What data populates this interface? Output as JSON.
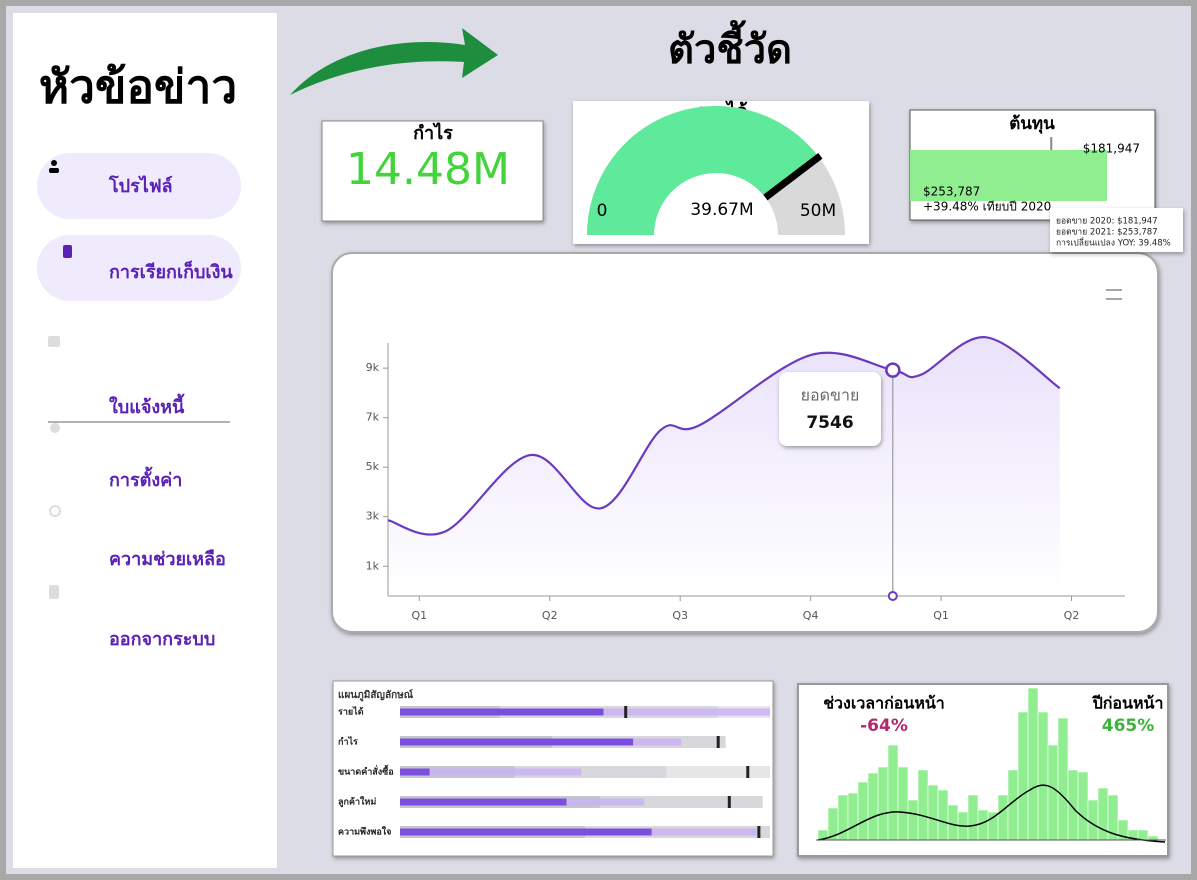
{
  "sidebar": {
    "title": "หัวข้อข่าว",
    "items": [
      "โปรไฟล์",
      "การเรียกเก็บเงิน",
      "ใบแจ้งหนี้",
      "การตั้งค่า",
      "ความช่วยเหลือ",
      "ออกจากระบบ"
    ]
  },
  "header": {
    "title": "ตัวชี้วัด"
  },
  "profit_card": {
    "title": "กำไร",
    "value": "14.48M"
  },
  "revenue_gauge": {
    "title": "รายได้",
    "value": 39.67,
    "value_label": "39.67M",
    "ticks": [
      0,
      {
        "value": 50,
        "label": "50M"
      }
    ]
  },
  "cost_card": {
    "title": "ต้นทุน",
    "current": 253787,
    "current_label": "$253,787",
    "target": 181947,
    "target_label": "$181,947",
    "change_label": "+39.48% เทียบปี 2020",
    "tooltip": [
      "ยอดขาย 2020: $181,947",
      "ยอดขาย 2021: $253,787",
      "การเปลี่ยนแปลง YOY: 39.48%"
    ]
  },
  "sales_chart": {
    "type": "line",
    "x": [
      -0.24,
      0.2,
      0.85,
      1.39,
      1.85,
      2.15,
      3.0,
      3.63,
      3.84,
      4.34,
      4.91
    ],
    "y": [
      2860,
      2410,
      5490,
      3340,
      6500,
      6700,
      9530,
      8920,
      8720,
      10250,
      8190
    ],
    "xlim": [
      -0.24,
      5.41
    ],
    "ylim": [
      -200,
      10500
    ],
    "xticks": [
      {
        "value": 0,
        "label": "Q1"
      },
      {
        "value": 1,
        "label": "Q2"
      },
      {
        "value": 2,
        "label": "Q3"
      },
      {
        "value": 3,
        "label": "Q4"
      },
      {
        "value": 4,
        "label": "Q1"
      },
      {
        "value": 5,
        "label": "Q2"
      }
    ],
    "yticks": [
      {
        "value": 1000,
        "label": "1k"
      },
      {
        "value": 3000,
        "label": "3k"
      },
      {
        "value": 5000,
        "label": "5k"
      },
      {
        "value": 7000,
        "label": "7k"
      },
      {
        "value": 9000,
        "label": "9k"
      }
    ],
    "color": "#6a3bbf",
    "tooltip": {
      "label": "ยอดขาย",
      "value": "7546"
    }
  },
  "bullet_chart": {
    "title": "แผนภูมิสัญลักษณ์",
    "xlim": [
      0,
      100
    ],
    "rows": [
      {
        "label": "รายได้",
        "value": 55,
        "projected": 100,
        "target": 61,
        "ranges": [
          27,
          86,
          100
        ]
      },
      {
        "label": "กำไร",
        "value": 63,
        "projected": 76,
        "target": 86,
        "ranges": [
          41,
          88,
          88
        ]
      },
      {
        "label": "ขนาดคำสั่งซื้อ",
        "value": 8,
        "projected": 49,
        "target": 94,
        "ranges": [
          31,
          72,
          100
        ]
      },
      {
        "label": "ลูกค้าใหม่",
        "value": 45,
        "projected": 66,
        "target": 89,
        "ranges": [
          54,
          98,
          98
        ]
      },
      {
        "label": "ความพึงพอใจ",
        "value": 68,
        "projected": 97,
        "target": 97,
        "ranges": [
          50,
          100,
          100
        ]
      }
    ]
  },
  "histogram_card": {
    "left_title": "ช่วงเวลาก่อนหน้า",
    "left_value": "-64%",
    "right_title": "ปีก่อนหน้า",
    "right_value": "465%",
    "color": "#90ee90",
    "bins": [
      0,
      1,
      2,
      3,
      4,
      5,
      6,
      7,
      8,
      9,
      10,
      11,
      12,
      13,
      14,
      15,
      16,
      17,
      18,
      19,
      20,
      21,
      22,
      23,
      24,
      25,
      26,
      27,
      28,
      29,
      30,
      31,
      32,
      33,
      34
    ],
    "counts": [
      10,
      32,
      45,
      47,
      58,
      67,
      73,
      95,
      73,
      40,
      70,
      55,
      50,
      35,
      28,
      45,
      30,
      28,
      45,
      70,
      128,
      152,
      128,
      95,
      122,
      70,
      68,
      40,
      52,
      45,
      20,
      10,
      10,
      4
    ]
  }
}
